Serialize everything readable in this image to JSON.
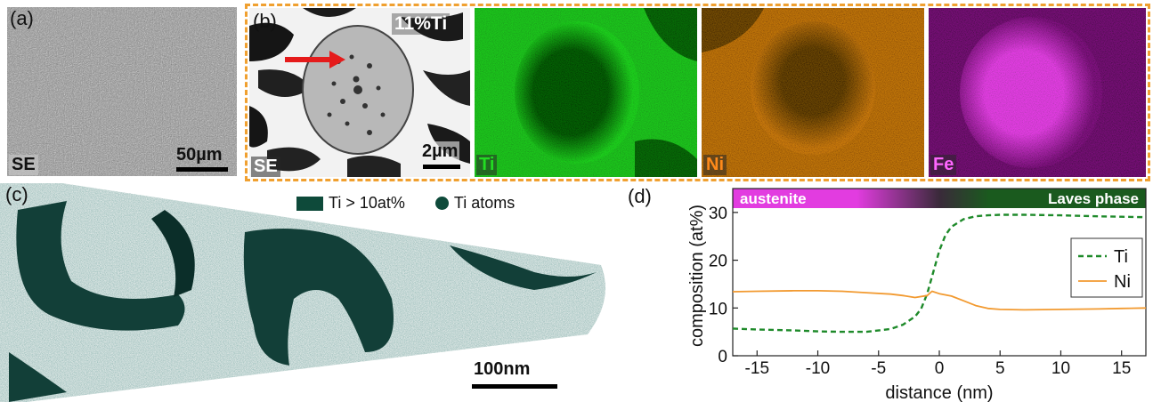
{
  "panel_a": {
    "label": "(a)",
    "tag": "SE",
    "scale": "50µm"
  },
  "panel_b": {
    "label": "(b)",
    "tag": "SE",
    "scale": "2µm",
    "composition": "11%Ti",
    "maps": [
      {
        "tag": "Ti",
        "color": "#22dd22"
      },
      {
        "tag": "Ni",
        "color": "#ff8a1a"
      },
      {
        "tag": "Fe",
        "color": "#ff40ff"
      }
    ]
  },
  "panel_c": {
    "label": "(c)",
    "scale": "100nm",
    "legend": [
      {
        "text": "Ti > 10at%",
        "marker": "rect",
        "color": "#0e4a3a"
      },
      {
        "text": "Ti atoms",
        "marker": "circle",
        "color": "#0e4a3a"
      }
    ]
  },
  "panel_d": {
    "label": "(d)"
  },
  "chart_data": {
    "type": "line",
    "xlabel": "distance (nm)",
    "ylabel": "composition (at%)",
    "xlim": [
      -17,
      17
    ],
    "ylim": [
      0,
      35
    ],
    "xticks": [
      -15,
      -10,
      -5,
      0,
      5,
      10,
      15
    ],
    "yticks": [
      0,
      10,
      20,
      30
    ],
    "top_bar": {
      "left_text": "austenite",
      "right_text": "Laves phase",
      "left_color": "#e23ce0",
      "right_color": "#1a5a1e"
    },
    "legend_position": "right",
    "series": [
      {
        "name": "Ti",
        "style": "dashed",
        "color": "#1e8a2a",
        "x": [
          -17,
          -15,
          -12,
          -10,
          -8,
          -6,
          -4,
          -3,
          -2,
          -1.5,
          -1,
          -0.5,
          0,
          0.5,
          1,
          2,
          3,
          4,
          5,
          7,
          10,
          13,
          15,
          17
        ],
        "y": [
          5.7,
          5.5,
          5.3,
          5.1,
          5.0,
          5.0,
          5.6,
          6.5,
          8.2,
          9.8,
          13.0,
          17.5,
          22.0,
          25.2,
          27.0,
          28.6,
          29.2,
          29.4,
          29.5,
          29.5,
          29.4,
          29.2,
          29.1,
          29.0
        ]
      },
      {
        "name": "Ni",
        "style": "solid",
        "color": "#f29a30",
        "x": [
          -17,
          -15,
          -12,
          -10,
          -8,
          -6,
          -4,
          -3,
          -2,
          -1,
          -0.6,
          0,
          1,
          2,
          3,
          4,
          5,
          7,
          10,
          13,
          15,
          17
        ],
        "y": [
          13.4,
          13.5,
          13.6,
          13.6,
          13.5,
          13.2,
          12.9,
          12.6,
          12.2,
          12.6,
          13.5,
          13.0,
          12.5,
          11.5,
          10.5,
          9.9,
          9.7,
          9.6,
          9.7,
          9.8,
          9.9,
          10.0
        ]
      }
    ]
  }
}
